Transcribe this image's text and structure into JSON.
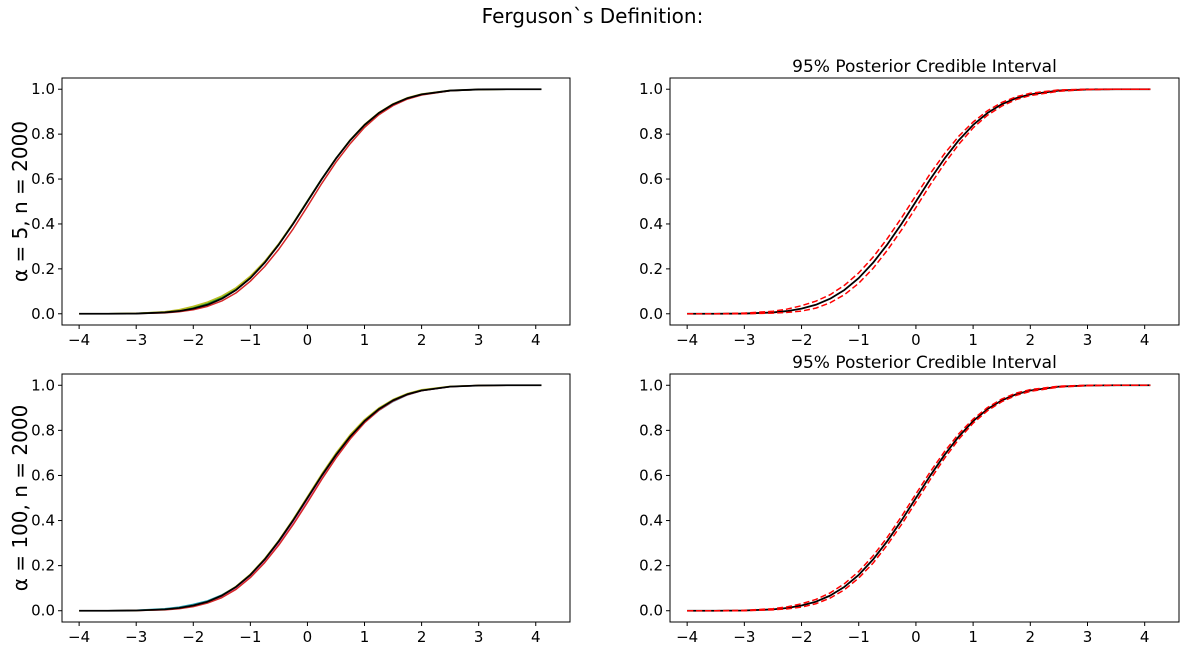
{
  "figure": {
    "title": "Ferguson`s Definition:"
  },
  "chart_data": [
    {
      "type": "line",
      "row_label": "α = 5, n = 2000",
      "title": "",
      "xlim": [
        -4.3,
        4.6
      ],
      "ylim": [
        -0.05,
        1.05
      ],
      "xticks": [
        -4,
        -3,
        -2,
        -1,
        0,
        1,
        2,
        3,
        4
      ],
      "yticks": [
        0.0,
        0.2,
        0.4,
        0.6,
        0.8,
        1.0
      ],
      "xtick_labels": [
        "−4",
        "−3",
        "−2",
        "−1",
        "0",
        "1",
        "2",
        "3",
        "4"
      ],
      "ytick_labels": [
        "0.0",
        "0.2",
        "0.4",
        "0.6",
        "0.8",
        "1.0"
      ],
      "grid": false,
      "legend": "none",
      "x": [
        -4.0,
        -3.5,
        -3.0,
        -2.5,
        -2.25,
        -2.0,
        -1.75,
        -1.5,
        -1.25,
        -1.0,
        -0.75,
        -0.5,
        -0.25,
        0.0,
        0.25,
        0.5,
        0.75,
        1.0,
        1.25,
        1.5,
        1.75,
        2.0,
        2.5,
        3.0,
        3.5,
        4.1
      ],
      "series": [
        {
          "color": "#1f9fb4",
          "values": [
            0.0,
            0.0,
            0.001,
            0.006,
            0.012,
            0.023,
            0.04,
            0.067,
            0.106,
            0.159,
            0.227,
            0.309,
            0.401,
            0.5,
            0.599,
            0.691,
            0.773,
            0.841,
            0.894,
            0.933,
            0.96,
            0.977,
            0.994,
            0.999,
            1.0,
            1.0
          ]
        },
        {
          "color": "#2ca02c",
          "values": [
            0.0,
            0.0,
            0.002,
            0.008,
            0.016,
            0.028,
            0.046,
            0.074,
            0.112,
            0.165,
            0.232,
            0.312,
            0.404,
            0.503,
            0.601,
            0.693,
            0.772,
            0.839,
            0.891,
            0.93,
            0.958,
            0.976,
            0.993,
            0.999,
            1.0,
            1.0
          ]
        },
        {
          "color": "#d62728",
          "values": [
            0.0,
            0.0,
            0.001,
            0.004,
            0.009,
            0.018,
            0.033,
            0.057,
            0.093,
            0.145,
            0.21,
            0.288,
            0.378,
            0.478,
            0.58,
            0.675,
            0.758,
            0.83,
            0.886,
            0.927,
            0.956,
            0.974,
            0.993,
            0.999,
            1.0,
            1.0
          ]
        },
        {
          "color": "#bcbd22",
          "values": [
            0.0,
            0.0,
            0.002,
            0.009,
            0.018,
            0.033,
            0.052,
            0.079,
            0.116,
            0.168,
            0.233,
            0.313,
            0.404,
            0.502,
            0.6,
            0.692,
            0.775,
            0.843,
            0.896,
            0.935,
            0.962,
            0.979,
            0.995,
            0.999,
            1.0,
            1.0
          ]
        },
        {
          "color": "#000000",
          "values": [
            0.0,
            0.0,
            0.001,
            0.006,
            0.012,
            0.023,
            0.04,
            0.067,
            0.106,
            0.159,
            0.227,
            0.309,
            0.401,
            0.5,
            0.599,
            0.691,
            0.773,
            0.841,
            0.894,
            0.933,
            0.96,
            0.977,
            0.994,
            0.999,
            1.0,
            1.0
          ]
        }
      ]
    },
    {
      "type": "line",
      "row_label": "",
      "title": "95% Posterior Credible Interval",
      "xlim": [
        -4.3,
        4.6
      ],
      "ylim": [
        -0.05,
        1.05
      ],
      "xticks": [
        -4,
        -3,
        -2,
        -1,
        0,
        1,
        2,
        3,
        4
      ],
      "yticks": [
        0.0,
        0.2,
        0.4,
        0.6,
        0.8,
        1.0
      ],
      "xtick_labels": [
        "−4",
        "−3",
        "−2",
        "−1",
        "0",
        "1",
        "2",
        "3",
        "4"
      ],
      "ytick_labels": [
        "0.0",
        "0.2",
        "0.4",
        "0.6",
        "0.8",
        "1.0"
      ],
      "grid": false,
      "legend": "none",
      "x": [
        -4.0,
        -3.5,
        -3.0,
        -2.5,
        -2.25,
        -2.0,
        -1.75,
        -1.5,
        -1.25,
        -1.0,
        -0.75,
        -0.5,
        -0.25,
        0.0,
        0.25,
        0.5,
        0.75,
        1.0,
        1.25,
        1.5,
        1.75,
        2.0,
        2.5,
        3.0,
        3.5,
        4.1
      ],
      "series": [
        {
          "color": "#000000",
          "style": "solid",
          "values": [
            0.0,
            0.0,
            0.001,
            0.006,
            0.012,
            0.023,
            0.04,
            0.067,
            0.106,
            0.159,
            0.227,
            0.309,
            0.401,
            0.5,
            0.599,
            0.691,
            0.773,
            0.841,
            0.894,
            0.933,
            0.96,
            0.977,
            0.994,
            0.999,
            1.0,
            1.0
          ]
        },
        {
          "color": "#ff0000",
          "style": "dashed",
          "values": [
            0.0,
            0.0,
            0.003,
            0.011,
            0.021,
            0.036,
            0.056,
            0.085,
            0.127,
            0.182,
            0.252,
            0.335,
            0.428,
            0.527,
            0.624,
            0.713,
            0.791,
            0.854,
            0.904,
            0.941,
            0.966,
            0.982,
            0.997,
            1.0,
            1.0,
            1.0
          ]
        },
        {
          "color": "#ff0000",
          "style": "dashed",
          "values": [
            0.0,
            0.0,
            0.0,
            0.003,
            0.006,
            0.012,
            0.025,
            0.049,
            0.085,
            0.136,
            0.202,
            0.283,
            0.374,
            0.473,
            0.574,
            0.669,
            0.755,
            0.828,
            0.884,
            0.925,
            0.954,
            0.972,
            0.991,
            0.998,
            1.0,
            1.0
          ]
        }
      ]
    },
    {
      "type": "line",
      "row_label": "α = 100, n = 2000",
      "title": "",
      "xlim": [
        -4.3,
        4.6
      ],
      "ylim": [
        -0.05,
        1.05
      ],
      "xticks": [
        -4,
        -3,
        -2,
        -1,
        0,
        1,
        2,
        3,
        4
      ],
      "yticks": [
        0.0,
        0.2,
        0.4,
        0.6,
        0.8,
        1.0
      ],
      "xtick_labels": [
        "−4",
        "−3",
        "−2",
        "−1",
        "0",
        "1",
        "2",
        "3",
        "4"
      ],
      "ytick_labels": [
        "0.0",
        "0.2",
        "0.4",
        "0.6",
        "0.8",
        "1.0"
      ],
      "grid": false,
      "legend": "none",
      "x": [
        -4.0,
        -3.5,
        -3.0,
        -2.5,
        -2.25,
        -2.0,
        -1.75,
        -1.5,
        -1.25,
        -1.0,
        -0.75,
        -0.5,
        -0.25,
        0.0,
        0.25,
        0.5,
        0.75,
        1.0,
        1.25,
        1.5,
        1.75,
        2.0,
        2.5,
        3.0,
        3.5,
        4.1
      ],
      "series": [
        {
          "color": "#1f9fb4",
          "values": [
            0.0,
            0.0,
            0.002,
            0.009,
            0.016,
            0.028,
            0.044,
            0.07,
            0.107,
            0.16,
            0.228,
            0.31,
            0.402,
            0.5,
            0.598,
            0.69,
            0.77,
            0.836,
            0.888,
            0.928,
            0.957,
            0.976,
            0.994,
            0.999,
            1.0,
            1.0
          ]
        },
        {
          "color": "#e377c2",
          "values": [
            0.0,
            0.0,
            0.001,
            0.005,
            0.011,
            0.021,
            0.038,
            0.063,
            0.101,
            0.153,
            0.22,
            0.301,
            0.392,
            0.49,
            0.59,
            0.682,
            0.765,
            0.834,
            0.889,
            0.93,
            0.958,
            0.976,
            0.994,
            0.999,
            1.0,
            1.0
          ]
        },
        {
          "color": "#d62728",
          "values": [
            0.0,
            0.0,
            0.001,
            0.004,
            0.009,
            0.018,
            0.034,
            0.058,
            0.095,
            0.147,
            0.213,
            0.292,
            0.382,
            0.48,
            0.582,
            0.677,
            0.762,
            0.834,
            0.889,
            0.93,
            0.958,
            0.976,
            0.994,
            0.999,
            1.0,
            1.0
          ]
        },
        {
          "color": "#bcbd22",
          "values": [
            0.0,
            0.0,
            0.001,
            0.006,
            0.012,
            0.023,
            0.04,
            0.068,
            0.108,
            0.162,
            0.231,
            0.313,
            0.406,
            0.506,
            0.606,
            0.699,
            0.781,
            0.848,
            0.899,
            0.937,
            0.963,
            0.98,
            0.995,
            0.999,
            1.0,
            1.0
          ]
        },
        {
          "color": "#000000",
          "values": [
            0.0,
            0.0,
            0.001,
            0.006,
            0.012,
            0.023,
            0.04,
            0.067,
            0.106,
            0.159,
            0.227,
            0.309,
            0.401,
            0.5,
            0.599,
            0.691,
            0.773,
            0.841,
            0.894,
            0.933,
            0.96,
            0.977,
            0.994,
            0.999,
            1.0,
            1.0
          ]
        }
      ]
    },
    {
      "type": "line",
      "row_label": "",
      "title": "95% Posterior Credible Interval",
      "xlim": [
        -4.3,
        4.6
      ],
      "ylim": [
        -0.05,
        1.05
      ],
      "xticks": [
        -4,
        -3,
        -2,
        -1,
        0,
        1,
        2,
        3,
        4
      ],
      "yticks": [
        0.0,
        0.2,
        0.4,
        0.6,
        0.8,
        1.0
      ],
      "xtick_labels": [
        "−4",
        "−3",
        "−2",
        "−1",
        "0",
        "1",
        "2",
        "3",
        "4"
      ],
      "ytick_labels": [
        "0.0",
        "0.2",
        "0.4",
        "0.6",
        "0.8",
        "1.0"
      ],
      "grid": false,
      "legend": "none",
      "x": [
        -4.0,
        -3.5,
        -3.0,
        -2.5,
        -2.25,
        -2.0,
        -1.75,
        -1.5,
        -1.25,
        -1.0,
        -0.75,
        -0.5,
        -0.25,
        0.0,
        0.25,
        0.5,
        0.75,
        1.0,
        1.25,
        1.5,
        1.75,
        2.0,
        2.5,
        3.0,
        3.5,
        4.1
      ],
      "series": [
        {
          "color": "#000000",
          "style": "solid",
          "values": [
            0.0,
            0.0,
            0.001,
            0.006,
            0.012,
            0.023,
            0.04,
            0.067,
            0.106,
            0.159,
            0.227,
            0.309,
            0.401,
            0.5,
            0.599,
            0.691,
            0.773,
            0.841,
            0.894,
            0.933,
            0.96,
            0.977,
            0.994,
            0.999,
            1.0,
            1.0
          ]
        },
        {
          "color": "#ff0000",
          "style": "dashed",
          "values": [
            0.0,
            0.0,
            0.002,
            0.009,
            0.017,
            0.031,
            0.05,
            0.079,
            0.12,
            0.174,
            0.243,
            0.326,
            0.419,
            0.518,
            0.616,
            0.706,
            0.785,
            0.85,
            0.901,
            0.939,
            0.965,
            0.981,
            0.996,
            1.0,
            1.0,
            1.0
          ]
        },
        {
          "color": "#ff0000",
          "style": "dashed",
          "values": [
            0.0,
            0.0,
            0.0,
            0.004,
            0.008,
            0.016,
            0.031,
            0.056,
            0.093,
            0.145,
            0.211,
            0.292,
            0.383,
            0.482,
            0.582,
            0.676,
            0.761,
            0.832,
            0.887,
            0.927,
            0.955,
            0.973,
            0.992,
            0.998,
            1.0,
            1.0
          ]
        }
      ]
    }
  ]
}
